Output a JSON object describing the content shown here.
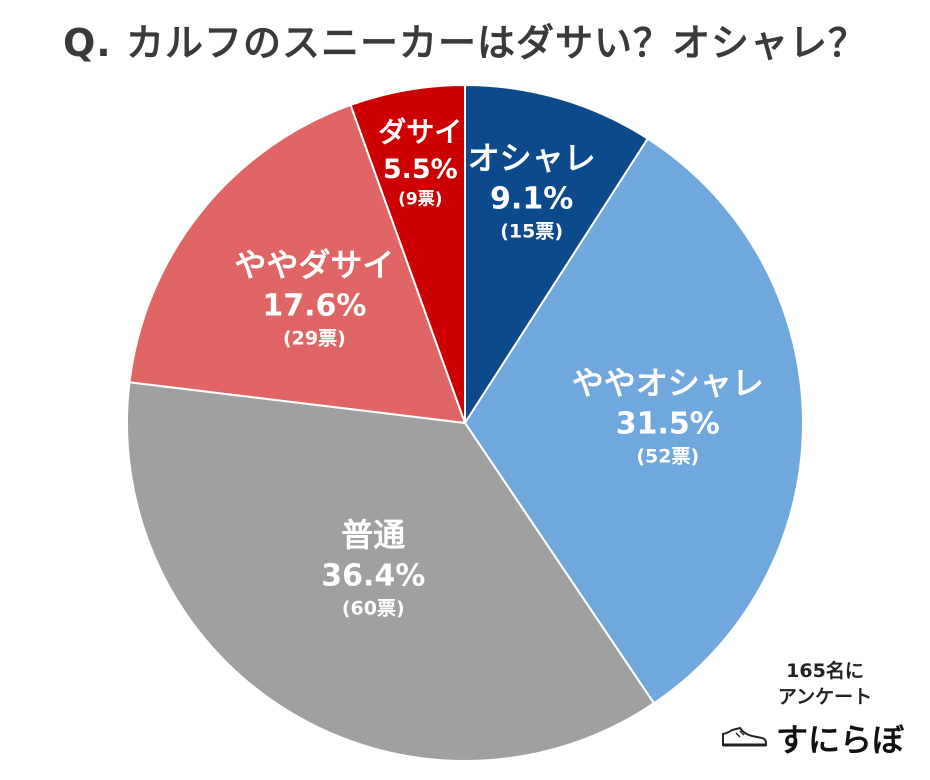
{
  "title": "Q. カルフのスニーカーはダサい？オシャレ？",
  "chart_data": {
    "type": "pie",
    "start_angle_deg": 0,
    "direction": "clockwise",
    "slices": [
      {
        "label": "オシャレ",
        "percent": "9.1%",
        "votes": "(15票)",
        "value": 9.1,
        "color": "#0d4a8c"
      },
      {
        "label": "ややオシャレ",
        "percent": "31.5%",
        "votes": "(52票)",
        "value": 31.5,
        "color": "#70a7dc"
      },
      {
        "label": "普通",
        "percent": "36.4%",
        "votes": "(60票)",
        "value": 36.4,
        "color": "#a0a0a0"
      },
      {
        "label": "ややダサイ",
        "percent": "17.6%",
        "votes": "(29票)",
        "value": 17.6,
        "color": "#e06666"
      },
      {
        "label": "ダサイ",
        "percent": "5.5%",
        "votes": "(9票)",
        "value": 5.5,
        "color": "#cc0000"
      }
    ]
  },
  "note": {
    "line1": "165名に",
    "line2": "アンケート"
  },
  "brand": {
    "name": "すにらぼ",
    "icon": "sneaker-icon"
  }
}
